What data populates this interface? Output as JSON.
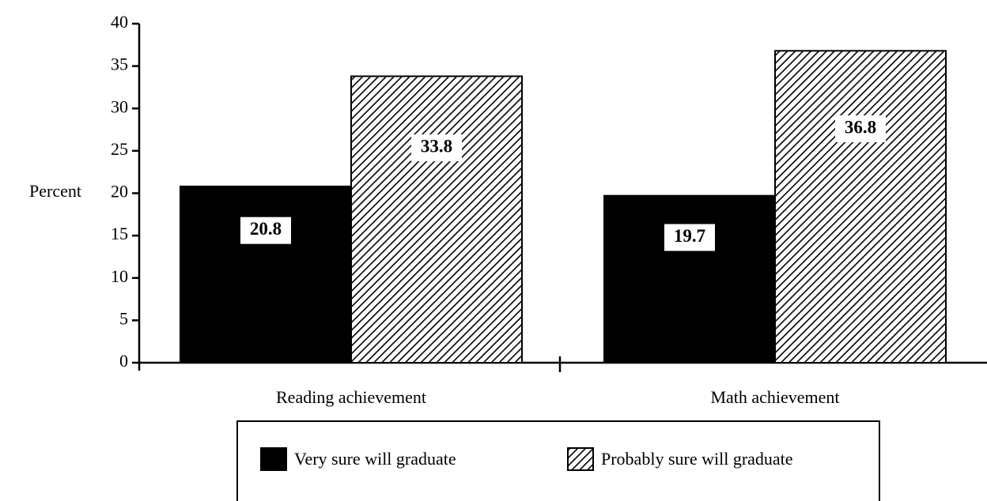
{
  "chart_data": {
    "type": "bar",
    "y_label": "Percent",
    "categories": [
      "Reading achievement",
      "Math achievement"
    ],
    "series": [
      {
        "name": "Very sure will graduate",
        "color": "#000000",
        "fill": "solid",
        "values": [
          20.8,
          19.7
        ]
      },
      {
        "name": "Probably sure will graduate",
        "color": "#000000",
        "fill": "hatch",
        "values": [
          33.8,
          36.8
        ]
      }
    ],
    "ylim": [
      0,
      40
    ],
    "yticks": [
      0,
      5,
      10,
      15,
      20,
      25,
      30,
      35,
      40
    ],
    "legend": "bottom",
    "grid": false
  }
}
